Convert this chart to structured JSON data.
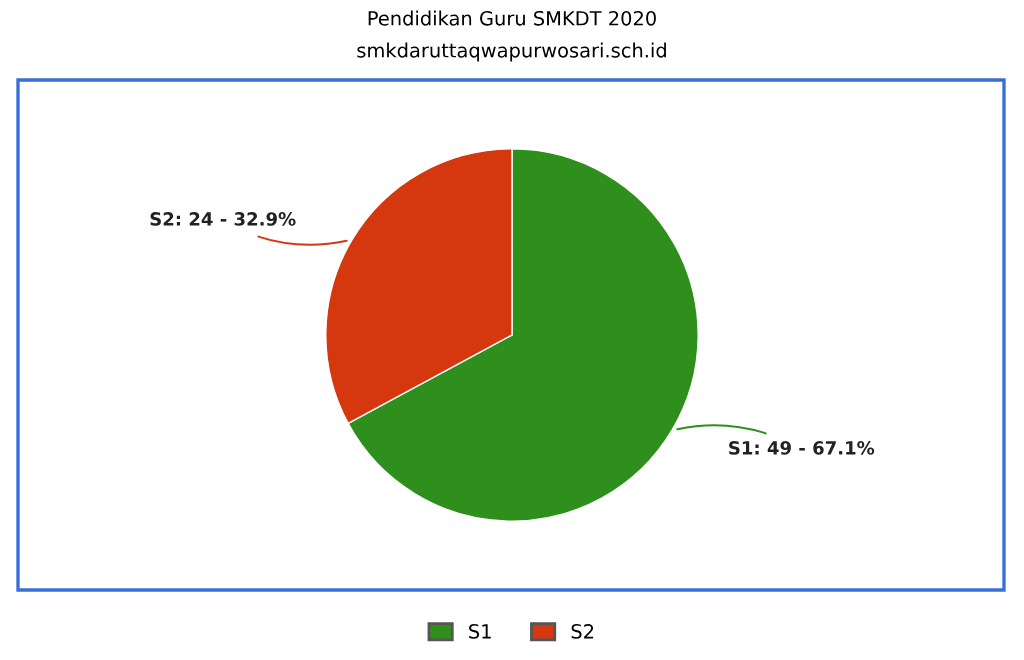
{
  "chart_data": {
    "type": "pie",
    "title": "Pendidikan Guru SMKDT 2020",
    "subtitle": "smkdaruttaqwapurwosari.sch.id",
    "categories": [
      "S1",
      "S2"
    ],
    "values": [
      49,
      24
    ],
    "colors": [
      "#2f8f1c",
      "#d5380f"
    ],
    "value_labels": [
      "S1: 49 - 67.1%",
      "S2: 24 - 32.9%"
    ],
    "legend": "bottom"
  }
}
